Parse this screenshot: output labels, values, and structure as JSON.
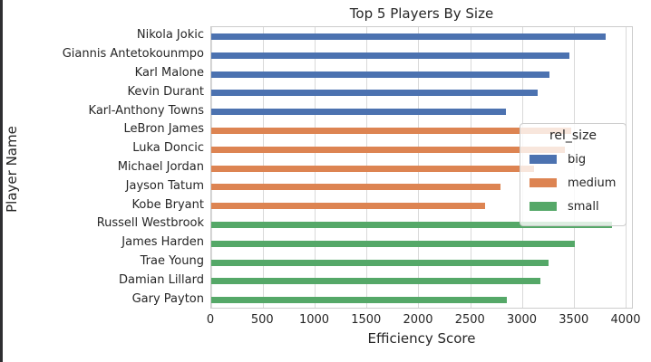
{
  "window": {
    "left_border_color": "#2e2e31"
  },
  "colors": {
    "background": "#ffffff",
    "grid": "#d9d9d9",
    "axes_edge": "#cccccc",
    "text": "#262626",
    "big": "#4C72B0",
    "medium": "#DD8452",
    "small": "#55A868"
  },
  "chart_data": {
    "type": "bar",
    "orientation": "horizontal",
    "title": "Top 5 Players By Size",
    "xlabel": "Efficiency Score",
    "ylabel": "Player Name",
    "xlim": [
      0,
      4070
    ],
    "xticks": [
      0,
      500,
      1000,
      1500,
      2000,
      2500,
      3000,
      3500,
      4000
    ],
    "grid": true,
    "hue_key": "rel_size",
    "groups": [
      {
        "name": "big",
        "color": "#4C72B0"
      },
      {
        "name": "medium",
        "color": "#DD8452"
      },
      {
        "name": "small",
        "color": "#55A868"
      }
    ],
    "bars": [
      {
        "player": "Nikola Jokic",
        "rel_size": "big",
        "value": 3800
      },
      {
        "player": "Giannis Antetokounmpo",
        "rel_size": "big",
        "value": 3450
      },
      {
        "player": "Karl Malone",
        "rel_size": "big",
        "value": 3260
      },
      {
        "player": "Kevin Durant",
        "rel_size": "big",
        "value": 3140
      },
      {
        "player": "Karl-Anthony Towns",
        "rel_size": "big",
        "value": 2840
      },
      {
        "player": "LeBron James",
        "rel_size": "medium",
        "value": 3470
      },
      {
        "player": "Luka Doncic",
        "rel_size": "medium",
        "value": 3410
      },
      {
        "player": "Michael Jordan",
        "rel_size": "medium",
        "value": 3110
      },
      {
        "player": "Jayson Tatum",
        "rel_size": "medium",
        "value": 2790
      },
      {
        "player": "Kobe Bryant",
        "rel_size": "medium",
        "value": 2640
      },
      {
        "player": "Russell Westbrook",
        "rel_size": "small",
        "value": 3860
      },
      {
        "player": "James Harden",
        "rel_size": "small",
        "value": 3500
      },
      {
        "player": "Trae Young",
        "rel_size": "small",
        "value": 3250
      },
      {
        "player": "Damian Lillard",
        "rel_size": "small",
        "value": 3170
      },
      {
        "player": "Gary Payton",
        "rel_size": "small",
        "value": 2850
      }
    ],
    "legend": {
      "title": "rel_size",
      "position": "center-right",
      "entries": [
        "big",
        "medium",
        "small"
      ]
    }
  }
}
